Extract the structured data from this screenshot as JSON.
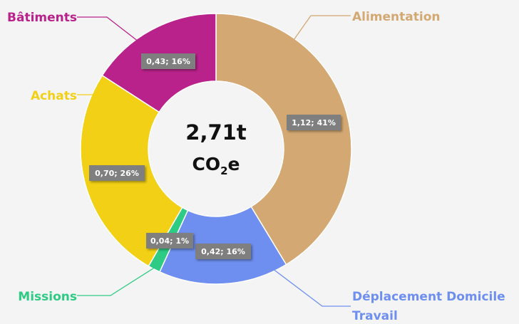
{
  "chart_data": {
    "type": "donut",
    "center": {
      "value": "2,71t",
      "unit_base": "CO",
      "unit_sub": "2",
      "unit_suffix": "e"
    },
    "slices": [
      {
        "name": "Alimentation",
        "label": "Alimentation",
        "value": 1.12,
        "percent": 41,
        "display": "1,12; 41%",
        "color": "#d4a872"
      },
      {
        "name": "Déplacement Domicile Travail",
        "label_line1": "Déplacement Domicile",
        "label_line2": "Travail",
        "value": 0.42,
        "percent": 16,
        "display": "0,42; 16%",
        "color": "#6e8ff0"
      },
      {
        "name": "Missions",
        "label": "Missions",
        "value": 0.04,
        "percent": 1,
        "display": "0,04; 1%",
        "color": "#2dcb84"
      },
      {
        "name": "Achats",
        "label": "Achats",
        "value": 0.7,
        "percent": 26,
        "display": "0,70; 26%",
        "color": "#f2d016"
      },
      {
        "name": "Bâtiments",
        "label": "Bâtiments",
        "value": 0.43,
        "percent": 16,
        "display": "0,43; 16%",
        "color": "#b8228a"
      }
    ]
  }
}
